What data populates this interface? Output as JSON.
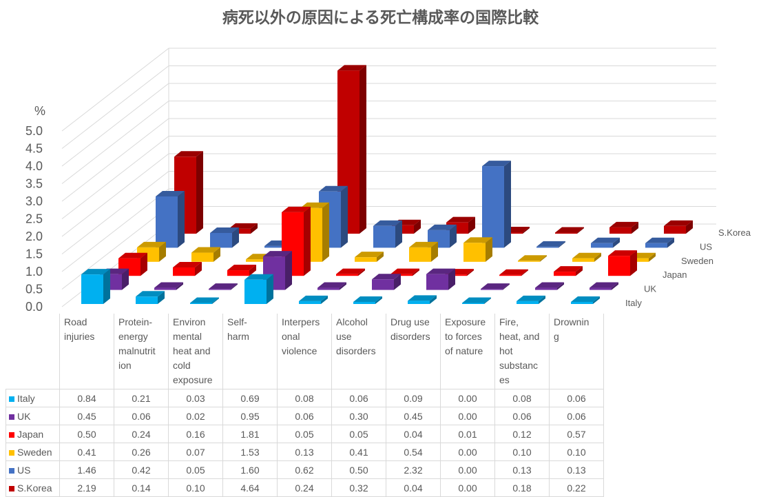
{
  "chart_data": {
    "type": "bar3d",
    "title": "病死以外の原因による死亡構成率の国際比較",
    "ylabel": "%",
    "ylim": [
      0,
      5.0
    ],
    "yticks": [
      "0.0",
      "0.5",
      "1.0",
      "1.5",
      "2.0",
      "2.5",
      "3.0",
      "3.5",
      "4.0",
      "4.5",
      "5.0"
    ],
    "categories": [
      "Road injuries",
      "Protein-energy malnutrition",
      "Environmental heat and cold exposure",
      "Self-harm",
      "Interpersonal violence",
      "Alcohol use disorders",
      "Drug use disorders",
      "Exposure to forces of nature",
      "Fire, heat, and hot substances",
      "Drowning"
    ],
    "category_labels": [
      "Road\ninjuries",
      "Protein-\nenergy\nmalnutrit\nion",
      "Environ\nmental\nheat and\ncold\nexposure",
      "Self-\nharm",
      "Interpers\nonal\nviolence",
      "Alcohol\nuse\ndisorders",
      "Drug use\ndisorders",
      "Exposure\nto forces\nof nature",
      "Fire,\nheat, and\nhot\nsubstanc\nes",
      "Drownin\ng"
    ],
    "series": [
      {
        "name": "Italy",
        "color": "#00B0F0",
        "values": [
          "0.84",
          "0.21",
          "0.03",
          "0.69",
          "0.08",
          "0.06",
          "0.09",
          "0.00",
          "0.08",
          "0.06"
        ]
      },
      {
        "name": "UK",
        "color": "#7030A0",
        "values": [
          "0.45",
          "0.06",
          "0.02",
          "0.95",
          "0.06",
          "0.30",
          "0.45",
          "0.00",
          "0.06",
          "0.06"
        ]
      },
      {
        "name": "Japan",
        "color": "#FF0000",
        "values": [
          "0.50",
          "0.24",
          "0.16",
          "1.81",
          "0.05",
          "0.05",
          "0.04",
          "0.01",
          "0.12",
          "0.57"
        ]
      },
      {
        "name": "Sweden",
        "color": "#FFC000",
        "values": [
          "0.41",
          "0.26",
          "0.07",
          "1.53",
          "0.13",
          "0.41",
          "0.54",
          "0.00",
          "0.10",
          "0.10"
        ]
      },
      {
        "name": "US",
        "color": "#4472C4",
        "values": [
          "1.46",
          "0.42",
          "0.05",
          "1.60",
          "0.62",
          "0.50",
          "2.32",
          "0.00",
          "0.13",
          "0.13"
        ]
      },
      {
        "name": "S.Korea",
        "color": "#C00000",
        "values": [
          "2.19",
          "0.14",
          "0.10",
          "4.64",
          "0.24",
          "0.32",
          "0.04",
          "0.00",
          "0.18",
          "0.22"
        ]
      }
    ]
  }
}
